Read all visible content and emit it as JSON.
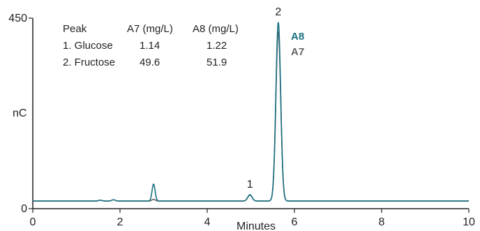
{
  "chart_data": {
    "type": "line",
    "title": "",
    "xlabel": "Minutes",
    "ylabel": "nC",
    "xlim": [
      0,
      10
    ],
    "ylim": [
      0,
      450
    ],
    "x_ticks": [
      0,
      2,
      4,
      6,
      8,
      10
    ],
    "y_ticks": [
      0,
      450
    ],
    "grid": false,
    "legend": {
      "placement": "right of tallest peak",
      "entries": [
        {
          "name": "A8",
          "color": "#1a6f80"
        },
        {
          "name": "A7",
          "color": "#666666"
        }
      ]
    },
    "peak_labels": [
      {
        "text": "1",
        "x": 4.98
      },
      {
        "text": "2",
        "x": 5.63
      }
    ],
    "peak_table": {
      "headers": [
        "Peak",
        "A7 (mg/L)",
        "A8 (mg/L)"
      ],
      "rows": [
        [
          "1. Glucose",
          "1.14",
          "1.22"
        ],
        [
          "2. Fructose",
          "49.6",
          "51.9"
        ]
      ]
    },
    "series": [
      {
        "name": "A8",
        "color": "#1a6f80",
        "baseline": 18,
        "peaks": [
          {
            "x": 1.55,
            "height": 2,
            "width": 0.04
          },
          {
            "x": 1.85,
            "height": 3,
            "width": 0.04
          },
          {
            "x": 2.77,
            "height": 40,
            "width": 0.035
          },
          {
            "x": 4.98,
            "height": 15,
            "width": 0.05
          },
          {
            "x": 5.63,
            "height": 422,
            "width": 0.055
          }
        ]
      },
      {
        "name": "A7",
        "color": "#666666",
        "baseline": 18,
        "peaks": [
          {
            "x": 1.55,
            "height": 2,
            "width": 0.04
          },
          {
            "x": 1.85,
            "height": 3,
            "width": 0.04
          },
          {
            "x": 2.77,
            "height": 4,
            "width": 0.04
          },
          {
            "x": 4.98,
            "height": 14,
            "width": 0.05
          },
          {
            "x": 5.63,
            "height": 400,
            "width": 0.055
          }
        ]
      }
    ]
  }
}
